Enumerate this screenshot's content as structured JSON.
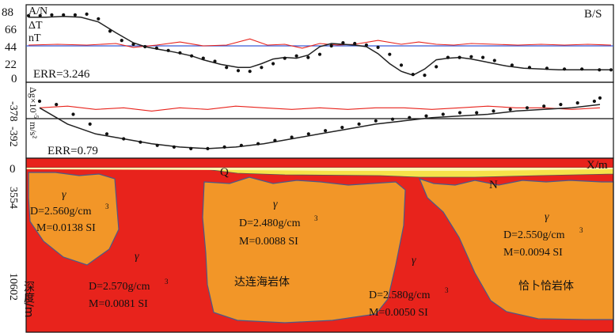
{
  "colors": {
    "granite_red": "#e8231c",
    "intrusion_orange": "#f29628",
    "cover_yellow": "#f6e24a",
    "cover_pale": "#fdf4b0",
    "calc_curve": "#222222",
    "obs_points": "#111111",
    "residual": "#e8231c",
    "baseline_mag": "#3a5bd8",
    "baseline_grav": "#111111",
    "boundary": "#4a5a8a"
  },
  "chart_data": [
    {
      "type": "line",
      "panel": "magnetic",
      "ylabel_lines": [
        "A/N",
        "ΔT",
        "nT"
      ],
      "y_ticks": [
        "88",
        "66",
        "44",
        "22",
        "0"
      ],
      "ylim": [
        0,
        88
      ],
      "xlim": [
        0,
        100
      ],
      "corner_label": "B/S",
      "err_label": "ERR=3.246",
      "series": [
        {
          "role": "calculated",
          "x": [
            0,
            3,
            6,
            9,
            12,
            15,
            18,
            20,
            22,
            25,
            28,
            30,
            33,
            36,
            38,
            40,
            42,
            44,
            46,
            48,
            50,
            52,
            54,
            56,
            58,
            60,
            62,
            64,
            66,
            68,
            70,
            72,
            74,
            76,
            78,
            80,
            82,
            85,
            88,
            91,
            94,
            97,
            100
          ],
          "y": [
            80,
            80,
            81,
            80,
            74,
            60,
            47,
            42,
            39,
            35,
            30,
            25,
            19,
            15,
            15,
            20,
            26,
            28,
            27,
            31,
            42,
            46,
            45,
            44,
            42,
            33,
            20,
            10,
            5,
            13,
            25,
            27,
            28,
            26,
            23,
            20,
            17,
            14,
            13,
            12,
            12,
            12,
            12
          ]
        },
        {
          "role": "observed",
          "x": [
            0,
            2,
            4,
            6,
            8,
            10,
            12,
            14,
            16,
            18,
            20,
            22,
            24,
            26,
            28,
            30,
            32,
            34,
            36,
            38,
            40,
            42,
            44,
            46,
            48,
            50,
            52,
            54,
            56,
            58,
            60,
            62,
            64,
            66,
            68,
            70,
            72,
            74,
            76,
            78,
            80,
            83,
            86,
            89,
            92,
            95,
            98,
            100
          ],
          "y": [
            82,
            82,
            83,
            83,
            83,
            84,
            78,
            62,
            50,
            45,
            42,
            40,
            37,
            34,
            30,
            27,
            23,
            15,
            11,
            10,
            15,
            20,
            27,
            30,
            28,
            32,
            43,
            47,
            46,
            44,
            41,
            32,
            18,
            6,
            5,
            16,
            28,
            28,
            29,
            28,
            24,
            18,
            15,
            14,
            13,
            13,
            12,
            12
          ]
        },
        {
          "role": "residual",
          "x": [
            0,
            5,
            10,
            15,
            18,
            22,
            26,
            30,
            34,
            38,
            41,
            44,
            47,
            50,
            53,
            56,
            60,
            64,
            67,
            70,
            73,
            76,
            80,
            84,
            88,
            92,
            96,
            100
          ],
          "y": [
            44,
            45,
            44,
            46,
            41,
            44,
            48,
            43,
            44,
            52,
            44,
            45,
            40,
            46,
            44,
            45,
            50,
            45,
            48,
            45,
            44,
            46,
            45,
            44,
            45,
            44,
            45,
            44
          ]
        }
      ],
      "baseline": 44
    },
    {
      "type": "line",
      "panel": "gravity",
      "ylabel_lines": [
        "Δg×10",
        "m/s²"
      ],
      "ylabel_superscript": "-5",
      "y_ticks": [
        "-378",
        "-392"
      ],
      "xlim": [
        0,
        100
      ],
      "err_label": "ERR=0.79",
      "series": [
        {
          "role": "calculated",
          "x": [
            0,
            5,
            10,
            15,
            20,
            25,
            30,
            35,
            40,
            45,
            50,
            55,
            60,
            65,
            70,
            75,
            80,
            85,
            90,
            95,
            100
          ],
          "y": [
            -368,
            -378,
            -384,
            -387,
            -390,
            -392,
            -393,
            -392,
            -390,
            -387,
            -384,
            -381,
            -378,
            -376,
            -374,
            -373,
            -372,
            -370,
            -369,
            -368,
            -366
          ]
        },
        {
          "role": "observed",
          "x": [
            0,
            3,
            6,
            9,
            12,
            15,
            18,
            21,
            24,
            27,
            30,
            33,
            36,
            39,
            42,
            45,
            48,
            51,
            54,
            57,
            60,
            63,
            66,
            69,
            72,
            75,
            78,
            81,
            84,
            87,
            90,
            93,
            96,
            99,
            100
          ],
          "y": [
            -364,
            -366,
            -372,
            -378,
            -384,
            -387,
            -389,
            -391,
            -392,
            -393,
            -393,
            -392,
            -391,
            -390,
            -388,
            -386,
            -384,
            -382,
            -380,
            -378,
            -376,
            -375,
            -374,
            -373,
            -372,
            -371,
            -371,
            -370,
            -369,
            -368,
            -367,
            -366,
            -365,
            -364,
            -362
          ]
        },
        {
          "role": "residual",
          "x": [
            0,
            5,
            10,
            15,
            20,
            25,
            30,
            35,
            40,
            45,
            50,
            55,
            60,
            65,
            70,
            75,
            80,
            85,
            90,
            95,
            100
          ],
          "y": [
            -368,
            -367,
            -369,
            -368,
            -370,
            -368,
            -369,
            -367,
            -368,
            -369,
            -368,
            -369,
            -368,
            -368,
            -369,
            -368,
            -367,
            -368,
            -368,
            -369,
            -368
          ]
        }
      ],
      "baseline": -368
    },
    {
      "type": "table",
      "panel": "geologic_section",
      "ylabel": "深度/m",
      "xlabel": "X/m",
      "y_ticks": [
        "0",
        "3554",
        "10602"
      ],
      "layer_labels": [
        "Q",
        "N"
      ],
      "bodies": [
        {
          "symbol": "γ",
          "density": "D=2.560g/cm",
          "magnetization": "M=0.0138 SI",
          "name": ""
        },
        {
          "symbol": "γ",
          "density": "D=2.570g/cm",
          "magnetization": "M=0.0081  SI",
          "name": ""
        },
        {
          "symbol": "γ",
          "density": "D=2.480g/cm",
          "magnetization": "M=0.0088  SI",
          "name": "达连海岩体"
        },
        {
          "symbol": "γ",
          "density": "D=2.580g/cm",
          "magnetization": "M=0.0050  SI",
          "name": ""
        },
        {
          "symbol": "γ",
          "density": "D=2.550g/cm",
          "magnetization": "M=0.0094  SI",
          "name": "恰卜恰岩体"
        }
      ],
      "unit_superscript": "3"
    }
  ]
}
